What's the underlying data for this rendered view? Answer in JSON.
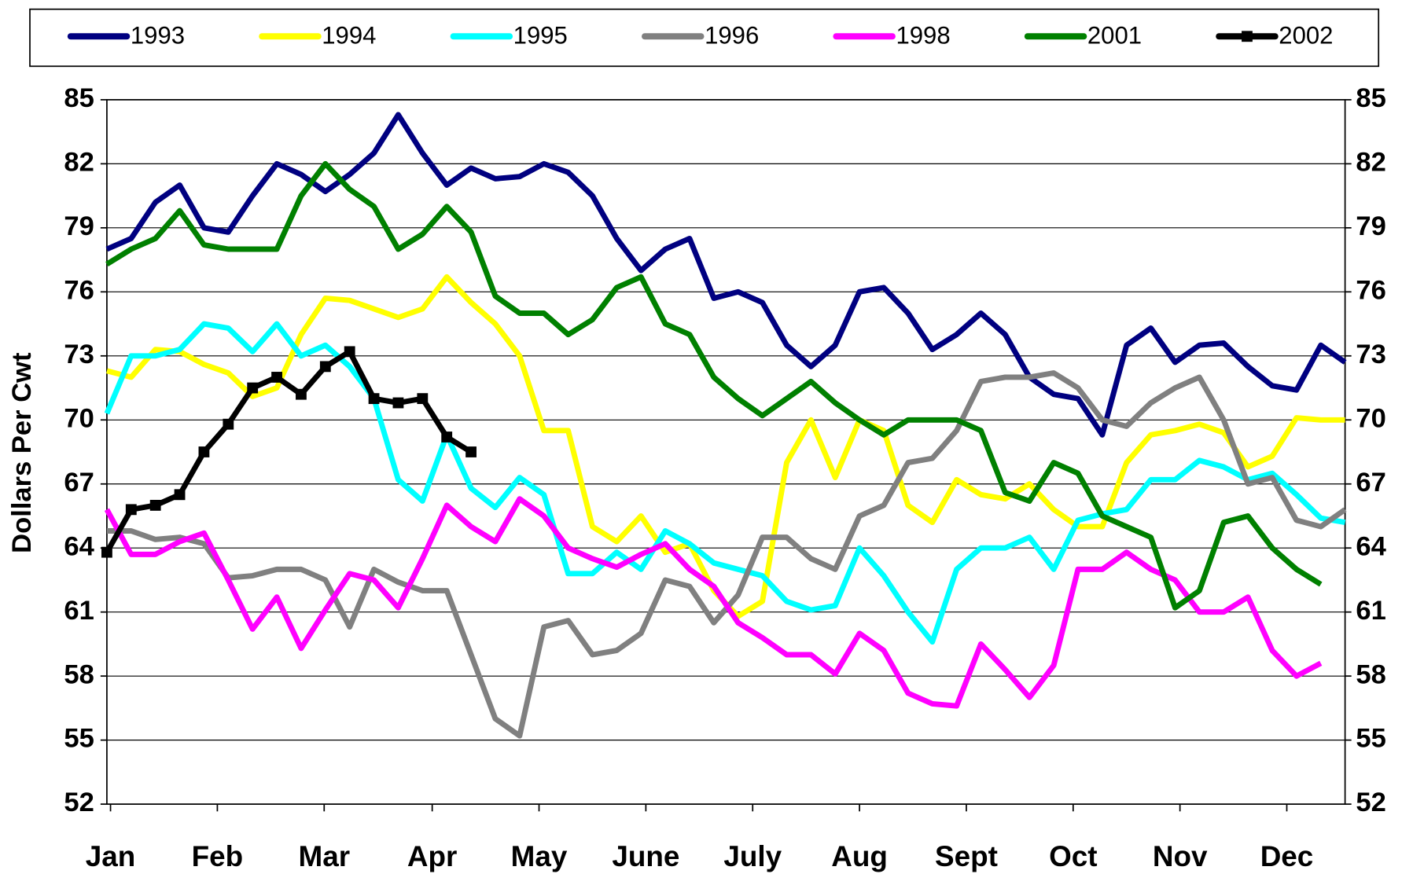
{
  "chart_data": {
    "type": "line",
    "y_label": "Dollars Per Cwt",
    "x": [
      1,
      2,
      3,
      4,
      5,
      6,
      7,
      8,
      9,
      10,
      11,
      12,
      13,
      14,
      15,
      16,
      17,
      18,
      19,
      20,
      21,
      22,
      23,
      24,
      25,
      26,
      27,
      28,
      29,
      30,
      31,
      32,
      33,
      34,
      35,
      36,
      37,
      38,
      39,
      40,
      41,
      42,
      43,
      44,
      45,
      46,
      47,
      48,
      49,
      50,
      51,
      52
    ],
    "xlim": [
      1,
      52
    ],
    "xticks": [
      {
        "value": 1.15,
        "label": "Jan"
      },
      {
        "value": 5.55,
        "label": "Feb"
      },
      {
        "value": 9.95,
        "label": "Mar"
      },
      {
        "value": 14.4,
        "label": "Apr"
      },
      {
        "value": 18.8,
        "label": "May"
      },
      {
        "value": 23.2,
        "label": "June"
      },
      {
        "value": 27.6,
        "label": "July"
      },
      {
        "value": 32,
        "label": "Aug"
      },
      {
        "value": 36.4,
        "label": "Sept"
      },
      {
        "value": 40.8,
        "label": "Oct"
      },
      {
        "value": 45.2,
        "label": "Nov"
      },
      {
        "value": 49.6,
        "label": "Dec"
      }
    ],
    "ylim": [
      52,
      85
    ],
    "yticks": [
      52,
      55,
      58,
      61,
      64,
      67,
      70,
      73,
      76,
      79,
      82,
      85
    ],
    "y2lim": [
      52,
      85
    ],
    "y2ticks": [
      52,
      55,
      58,
      61,
      64,
      67,
      70,
      73,
      76,
      79,
      82,
      85
    ],
    "grid": true,
    "legend": "top",
    "series": [
      {
        "name": "1993",
        "color": "#000080",
        "values": [
          78,
          78.5,
          80.2,
          81,
          79,
          78.8,
          80.5,
          82,
          81.5,
          80.7,
          81.5,
          82.5,
          84.3,
          82.5,
          81,
          81.8,
          81.3,
          81.4,
          82,
          81.6,
          80.5,
          78.5,
          77,
          78,
          78.5,
          75.7,
          76,
          75.5,
          73.5,
          72.5,
          73.5,
          76,
          76.2,
          75,
          73.3,
          74,
          75,
          74,
          72,
          71.2,
          71,
          69.3,
          73.5,
          74.3,
          72.7,
          73.5,
          73.6,
          72.5,
          71.6,
          71.4,
          73.5,
          72.7
        ]
      },
      {
        "name": "1994",
        "color": "#ffff00",
        "values": [
          72.3,
          72,
          73.3,
          73.2,
          72.6,
          72.2,
          71.1,
          71.5,
          74,
          75.7,
          75.6,
          75.2,
          74.8,
          75.2,
          76.7,
          75.5,
          74.5,
          73,
          69.5,
          69.5,
          65,
          64.3,
          65.5,
          63.8,
          64.2,
          62,
          60.8,
          61.5,
          68,
          70,
          67.3,
          70,
          69.5,
          66,
          65.2,
          67.2,
          66.5,
          66.3,
          67,
          65.8,
          65,
          65,
          68,
          69.3,
          69.5,
          69.8,
          69.4,
          67.8,
          68.3,
          70.1,
          70,
          70
        ]
      },
      {
        "name": "1995",
        "color": "#00ffff",
        "values": [
          70.3,
          73,
          73,
          73.3,
          74.5,
          74.3,
          73.2,
          74.5,
          73,
          73.5,
          72.5,
          71,
          67.2,
          66.2,
          69.3,
          66.8,
          65.9,
          67.3,
          66.5,
          62.8,
          62.8,
          63.8,
          63,
          64.8,
          64.2,
          63.3,
          63,
          62.7,
          61.5,
          61.1,
          61.3,
          64,
          62.7,
          61,
          59.6,
          63,
          64,
          64,
          64.5,
          63,
          65.3,
          65.6,
          65.8,
          67.2,
          67.2,
          68.1,
          67.8,
          67.2,
          67.5,
          66.5,
          65.4,
          65.2
        ]
      },
      {
        "name": "1996",
        "color": "#808080",
        "values": [
          64.8,
          64.8,
          64.4,
          64.5,
          64.2,
          62.6,
          62.7,
          63,
          63,
          62.5,
          60.3,
          63,
          62.4,
          62,
          62,
          59,
          56,
          55.2,
          60.3,
          60.6,
          59,
          59.2,
          60,
          62.5,
          62.2,
          60.5,
          61.8,
          64.5,
          64.5,
          63.5,
          63,
          65.5,
          66,
          68,
          68.2,
          69.5,
          71.8,
          72,
          72,
          72.2,
          71.5,
          70,
          69.7,
          70.8,
          71.5,
          72,
          70,
          67,
          67.3,
          65.3,
          65,
          65.8
        ]
      },
      {
        "name": "1998",
        "color": "#ff00ff",
        "values": [
          65.8,
          63.7,
          63.7,
          64.3,
          64.7,
          62.5,
          60.2,
          61.7,
          59.3,
          61.1,
          62.8,
          62.5,
          61.2,
          63.5,
          66,
          65,
          64.3,
          66.3,
          65.5,
          64,
          63.5,
          63.1,
          63.7,
          64.2,
          63,
          62.2,
          60.5,
          59.8,
          59,
          59,
          58.1,
          60,
          59.2,
          57.2,
          56.7,
          56.6,
          59.5,
          58.3,
          57,
          58.5,
          63,
          63,
          63.8,
          63,
          62.5,
          61,
          61,
          61.7,
          59.2,
          58,
          58.6,
          null
        ]
      },
      {
        "name": "2001",
        "color": "#008000",
        "values": [
          77.3,
          78,
          78.5,
          79.8,
          78.2,
          78,
          78,
          78,
          80.5,
          82,
          80.8,
          80,
          78,
          78.7,
          80,
          78.8,
          75.8,
          75,
          75,
          74,
          74.7,
          76.2,
          76.7,
          74.5,
          74,
          72,
          71,
          70.2,
          71,
          71.8,
          70.8,
          70,
          69.3,
          70,
          70,
          70,
          69.5,
          66.6,
          66.2,
          68,
          67.5,
          65.5,
          65,
          64.5,
          61.2,
          62,
          65.2,
          65.5,
          64,
          63,
          62.3,
          null
        ]
      },
      {
        "name": "2002",
        "color": "#000000",
        "marker": "square",
        "values": [
          63.8,
          65.8,
          66,
          66.5,
          68.5,
          69.8,
          71.5,
          72,
          71.2,
          72.5,
          73.2,
          71,
          70.8,
          71,
          69.2,
          68.5,
          null,
          null,
          null,
          null,
          null,
          null,
          null,
          null,
          null,
          null,
          null,
          null,
          null,
          null,
          null,
          null,
          null,
          null,
          null,
          null,
          null,
          null,
          null,
          null,
          null,
          null,
          null,
          null,
          null,
          null,
          null,
          null,
          null,
          null,
          null,
          null
        ]
      }
    ]
  }
}
